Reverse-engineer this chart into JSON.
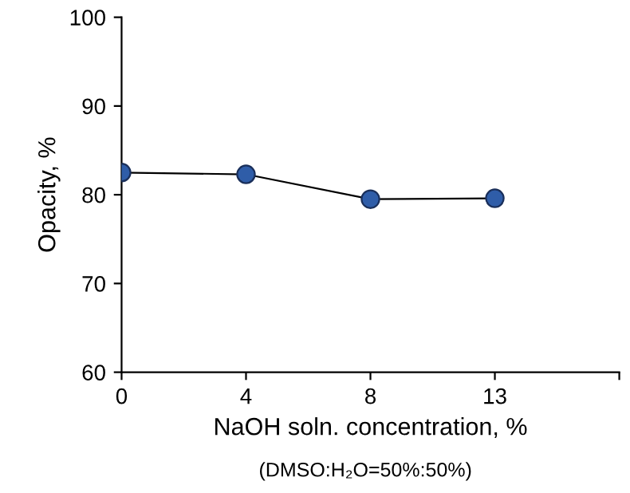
{
  "chart_data": {
    "type": "line",
    "xlabel": "NaOH soln. concentration, %",
    "ylabel": "Opacity, %",
    "annotations": [
      "(DMSO:H₂O=50%:50%)"
    ],
    "categories": [
      "0",
      "4",
      "8",
      "13",
      null
    ],
    "series": [
      {
        "color": "#2f5da8",
        "values": [
          82.5,
          82.3,
          79.5,
          79.6,
          null
        ]
      }
    ],
    "ylim": [
      60,
      100
    ],
    "yticks": [
      60,
      70,
      80,
      90,
      100
    ],
    "marker": "circle",
    "line_style": "solid",
    "grid": false,
    "legend": false
  }
}
